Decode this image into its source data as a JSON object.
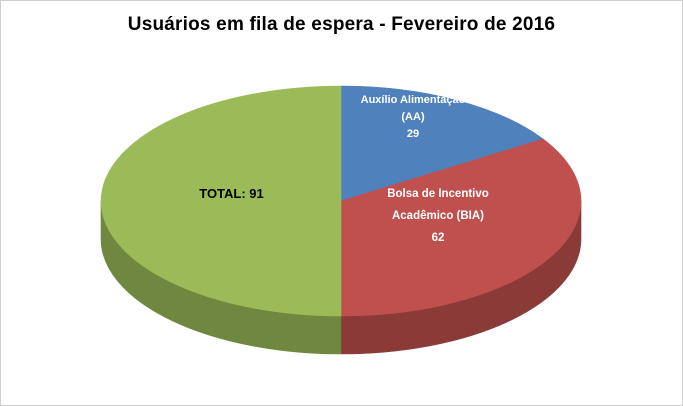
{
  "window": {
    "background": "#ffffff",
    "border_color": "#cfcfcf"
  },
  "chart_data": {
    "type": "pie",
    "title": "Usuários em fila de espera - Fevereiro de 2016",
    "effect": "3d",
    "start_angle_deg": 0,
    "direction": "clockwise",
    "legend": "none",
    "slices": [
      {
        "id": "aa",
        "label": "Auxílio Alimentação (AA)",
        "value": 29,
        "color": "#4f81bd",
        "label_lines": [
          "Auxílio Alimentação",
          "(AA)",
          "29"
        ],
        "label_color": "#ffffff"
      },
      {
        "id": "bia",
        "label": "Bolsa de Incentivo Acadêmico (BIA)",
        "value": 62,
        "color": "#c0504d",
        "label_lines": [
          "Bolsa de Incentivo",
          "Acadêmico (BIA)",
          "62"
        ],
        "label_color": "#ffffff"
      },
      {
        "id": "total",
        "label": "TOTAL",
        "value": 91,
        "color": "#9bbb59",
        "label_lines": [
          "TOTAL: 91"
        ],
        "label_color": "#000000"
      }
    ]
  }
}
